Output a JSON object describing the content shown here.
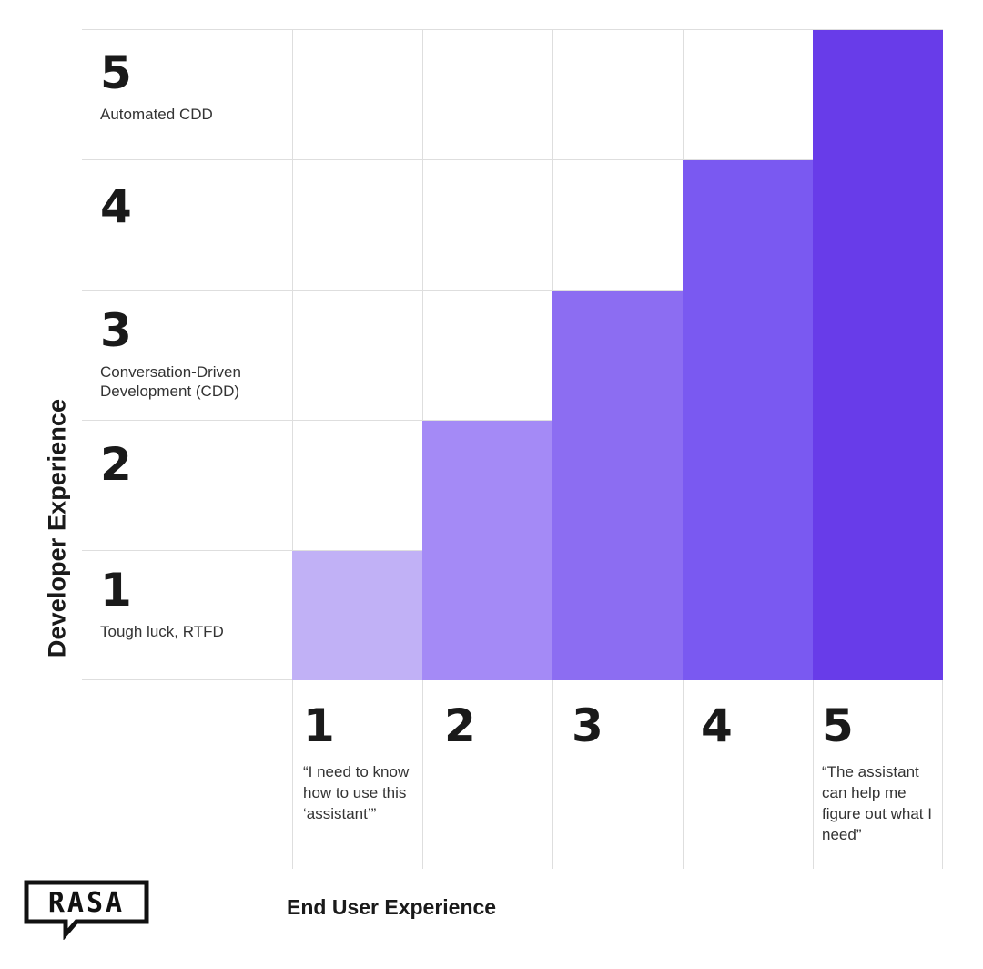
{
  "y_axis_title": "Developer Experience",
  "x_axis_title": "End User Experience",
  "logo_text": "RASA",
  "rows": [
    {
      "level": "5",
      "description": "Automated CDD"
    },
    {
      "level": "4",
      "description": ""
    },
    {
      "level": "3",
      "description": "Conversation-Driven Development (CDD)"
    },
    {
      "level": "2",
      "description": ""
    },
    {
      "level": "1",
      "description": "Tough luck, RTFD"
    }
  ],
  "columns": [
    {
      "level": "1",
      "description": "“I need to know how to use this ‘assistant’”"
    },
    {
      "level": "2",
      "description": ""
    },
    {
      "level": "3",
      "description": ""
    },
    {
      "level": "4",
      "description": ""
    },
    {
      "level": "5",
      "description": "“The assistant can help me figure out what I need”"
    }
  ],
  "colors": {
    "shade_1": "#c1b1f6",
    "shade_2": "#a48af6",
    "shade_3": "#8c6df2",
    "shade_4": "#7a59f1",
    "shade_5": "#683ce9",
    "gridline": "#dedede"
  }
}
